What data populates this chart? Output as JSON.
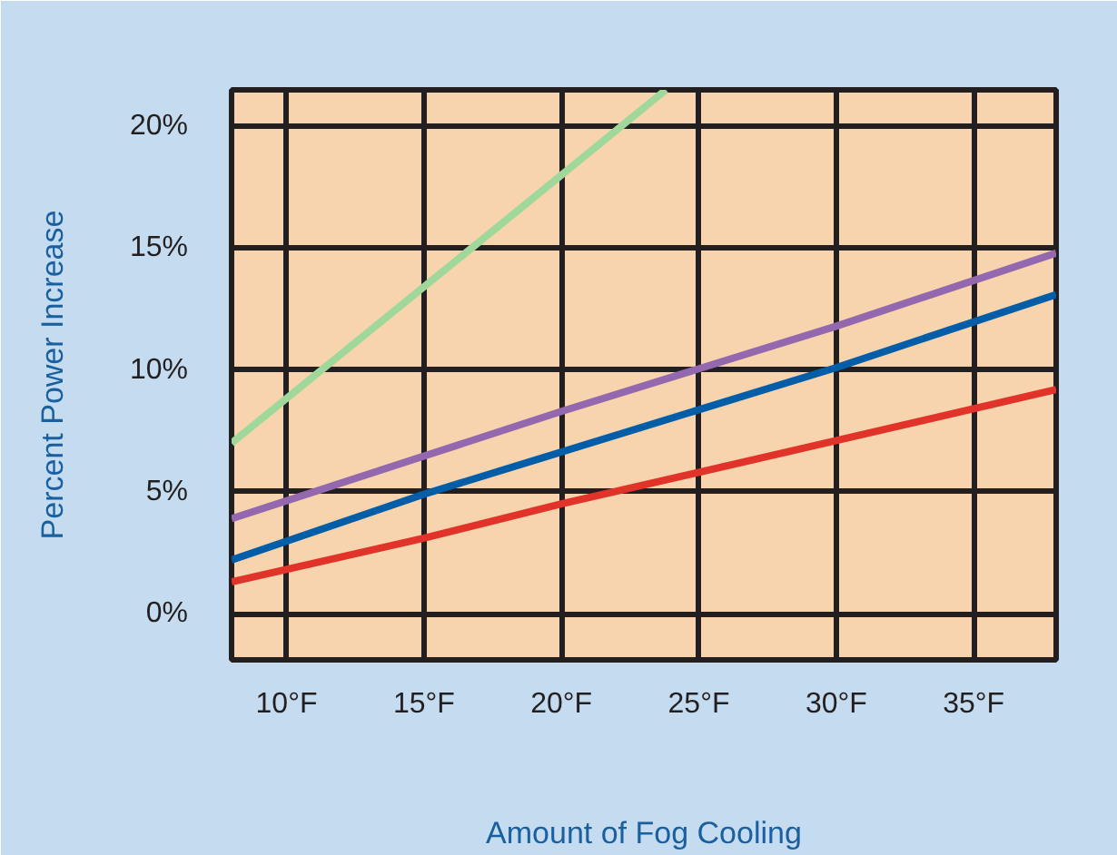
{
  "chart_data": {
    "type": "line",
    "xlabel": "Amount of Fog Cooling",
    "ylabel": "Percent Power Increase",
    "xlim": [
      8,
      38
    ],
    "ylim": [
      -1.9,
      21.5
    ],
    "xticks": [
      {
        "value": 10,
        "label": "10°F"
      },
      {
        "value": 15,
        "label": "15°F"
      },
      {
        "value": 20,
        "label": "20°F"
      },
      {
        "value": 25,
        "label": "25°F"
      },
      {
        "value": 30,
        "label": "30°F"
      },
      {
        "value": 35,
        "label": "35°F"
      }
    ],
    "yticks": [
      {
        "value": 0,
        "label": "0%"
      },
      {
        "value": 5,
        "label": "5%"
      },
      {
        "value": 10,
        "label": "10%"
      },
      {
        "value": 15,
        "label": "15%"
      },
      {
        "value": 20,
        "label": "20%"
      }
    ],
    "grid": true,
    "line_style": "solid",
    "marker": "none",
    "series": [
      {
        "color": "#9fd89a",
        "x": [
          8,
          20,
          23.8
        ],
        "values": [
          7.0,
          18.0,
          21.5
        ]
      },
      {
        "color": "#9468ae",
        "x": [
          8,
          20,
          30,
          38
        ],
        "values": [
          3.9,
          8.3,
          11.8,
          14.8
        ]
      },
      {
        "color": "#005ea8",
        "x": [
          8,
          15,
          30,
          38
        ],
        "values": [
          2.2,
          4.9,
          10.1,
          13.1
        ]
      },
      {
        "color": "#e2332a",
        "x": [
          8,
          15,
          20,
          30,
          38
        ],
        "values": [
          1.3,
          3.1,
          4.5,
          7.1,
          9.2
        ]
      }
    ]
  }
}
